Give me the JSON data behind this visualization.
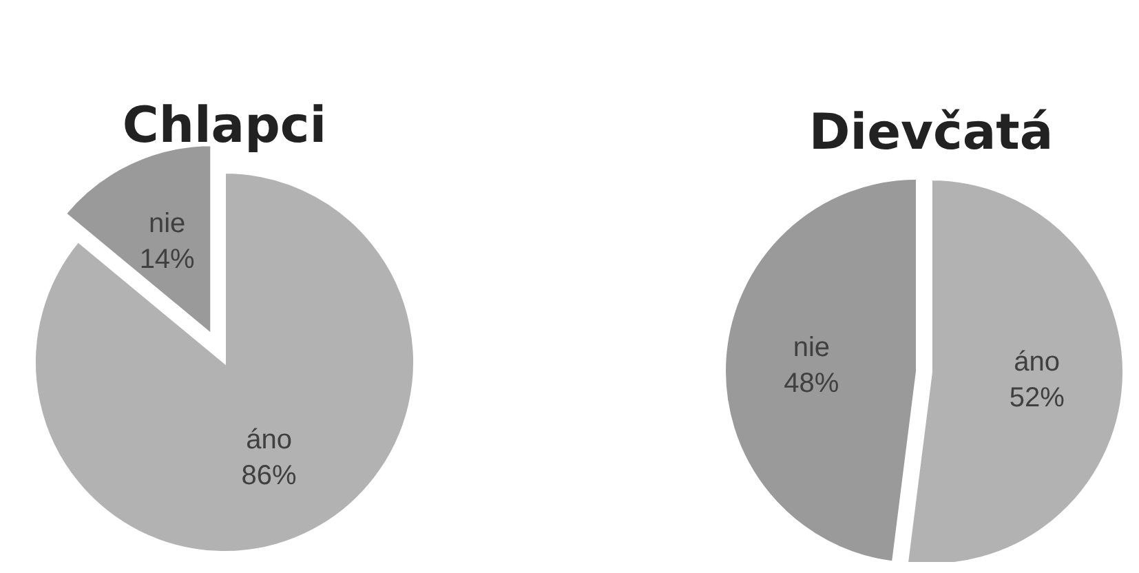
{
  "chart_data": [
    {
      "type": "pie",
      "title": "Chlapci",
      "categories": [
        "áno",
        "nie"
      ],
      "values": [
        86,
        14
      ],
      "colors": [
        "#b2b2b2",
        "#9a9a9a"
      ],
      "value_labels": [
        "86%",
        "14%"
      ]
    },
    {
      "type": "pie",
      "title": "Dievčatá",
      "categories": [
        "áno",
        "nie"
      ],
      "values": [
        52,
        48
      ],
      "colors": [
        "#b2b2b2",
        "#9a9a9a"
      ],
      "value_labels": [
        "52%",
        "48%"
      ]
    }
  ]
}
